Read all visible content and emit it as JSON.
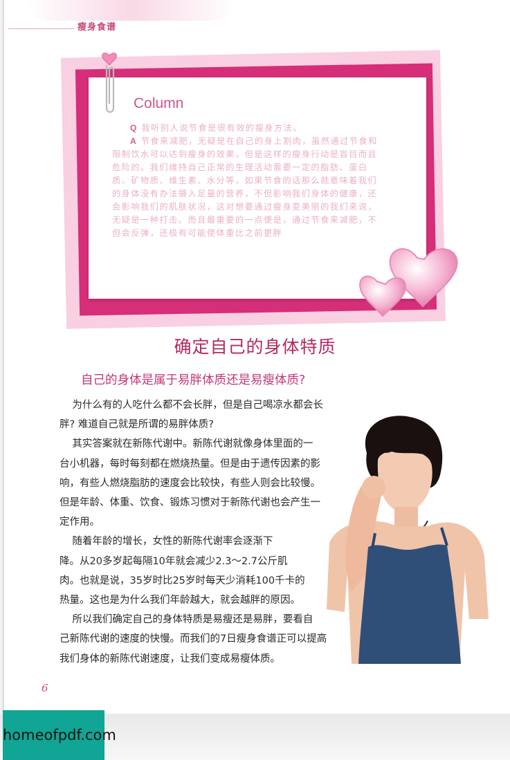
{
  "header": {
    "title": "瘦身食谱"
  },
  "column": {
    "label": "Column",
    "q_mark": "Q",
    "question": "我听别人说节食是很有效的瘦身方法。",
    "a_mark": "A",
    "answer_lines": [
      "节食来减肥，无疑是在自己的身上割肉，虽然通过节食和",
      "限制饮水可以达到瘦身的效果，但是这样的瘦身行动是盲目而且",
      "危险的。我们维持自己正常的生理活动需要一定的脂肪、蛋白",
      "质、矿物质、维生素、水分等，如果节食的话那么就意味着我们",
      "的身体没有办法摄入足量的营养，不但影响我们身体的健康，还",
      "会影响我们的肌肤状况，这对想要通过瘦身变美丽的我们来说，",
      "无疑是一种打击。而且最重要的一点便是，通过节食来减肥，不",
      "但会反弹，还极有可能使体重比之前更胖"
    ]
  },
  "section": {
    "title": "确定自己的身体特质",
    "subtitle": "自己的身体是属于易胖体质还是易瘦体质?",
    "lines": [
      "    为什么有的人吃什么都不会长胖，但是自己喝凉水都会长",
      "胖? 难道自己就是所谓的易胖体质?",
      "    其实答案就在新陈代谢中。新陈代谢就像身体里面的一",
      "台小机器，每时每刻都在燃烧热量。但是由于遗传因素的影",
      "响，有些人燃烧脂肪的速度会比较快，有些人则会比较慢。",
      "但是年龄、体重、饮食、锻炼习惯对于新陈代谢也会产生一",
      "定作用。",
      "    随着年龄的增长，女性的新陈代谢率会逐渐下",
      "降。从20多岁起每隔10年就会减少2.3～2.7公斤肌",
      "肉。也就是说，35岁时比25岁时每天少消耗100千卡的",
      "热量。这也是为什么我们年龄越大，就会越胖的原因。",
      "    所以我们确定自己的身体特质是易瘦还是易胖，要看自",
      "己新陈代谢的速度的快慢。而我们的7日瘦身食谱正可以提高",
      "我们身体的新陈代谢速度，让我们变成易瘦体质。"
    ]
  },
  "page_number": "6",
  "watermark": "homeofpdf.com"
}
